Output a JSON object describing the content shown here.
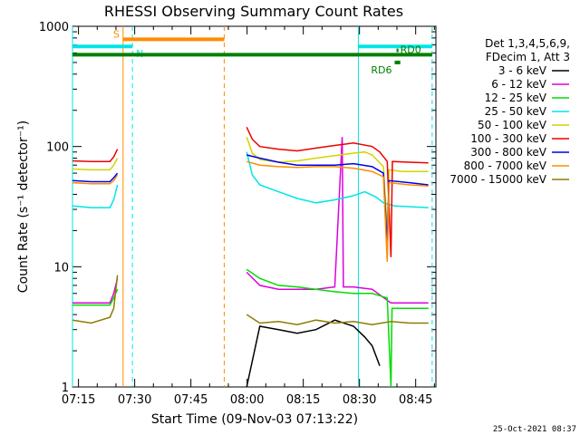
{
  "chart_data": {
    "type": "line",
    "title": "RHESSI Observing Summary Count Rates",
    "xlabel": "Start Time (09-Nov-03 07:13:22)",
    "ylabel": "Count Rate (s⁻¹ detector⁻¹)",
    "y_scale": "log",
    "ylim": [
      1,
      1000
    ],
    "xlim_minutes": [
      0,
      97
    ],
    "x_ticks": [
      {
        "label": "07:15",
        "minutes": 1.6
      },
      {
        "label": "07:30",
        "minutes": 16.6
      },
      {
        "label": "07:45",
        "minutes": 31.6
      },
      {
        "label": "08:00",
        "minutes": 46.6
      },
      {
        "label": "08:15",
        "minutes": 61.6
      },
      {
        "label": "08:30",
        "minutes": 76.6
      },
      {
        "label": "08:45",
        "minutes": 91.6
      }
    ],
    "y_ticks": [
      {
        "label": "1",
        "value": 1
      },
      {
        "label": "10",
        "value": 10
      },
      {
        "label": "100",
        "value": 100
      },
      {
        "label": "1000",
        "value": 1000
      }
    ],
    "legend_header": [
      "Det 1,3,4,5,6,9,",
      "FDecim 1, Att 3"
    ],
    "legend_position": "right",
    "series": [
      {
        "name": "3 - 6 keV",
        "color": "#000000",
        "segments": [
          [
            [
              46.5,
              1.0
            ],
            [
              50,
              3.2
            ],
            [
              55,
              3.0
            ],
            [
              60,
              2.8
            ],
            [
              65,
              3.0
            ],
            [
              70,
              3.6
            ],
            [
              75,
              3.2
            ],
            [
              78,
              2.6
            ],
            [
              80,
              2.2
            ],
            [
              82,
              1.5
            ]
          ]
        ]
      },
      {
        "name": "6 - 12 keV",
        "color": "#dd00dd",
        "segments": [
          [
            [
              0,
              5.0
            ],
            [
              10,
              5.0
            ],
            [
              11,
              6.0
            ],
            [
              12,
              8.0
            ]
          ],
          [
            [
              46.5,
              9.0
            ],
            [
              50,
              7.0
            ],
            [
              55,
              6.5
            ],
            [
              60,
              6.5
            ],
            [
              65,
              6.5
            ],
            [
              70,
              6.8
            ],
            [
              72,
              120
            ],
            [
              72.3,
              6.8
            ],
            [
              75,
              6.8
            ],
            [
              80,
              6.5
            ],
            [
              85,
              5.0
            ],
            [
              95,
              5.0
            ]
          ]
        ]
      },
      {
        "name": "12 - 25 keV",
        "color": "#00dd00",
        "segments": [
          [
            [
              0,
              4.8
            ],
            [
              10,
              4.8
            ],
            [
              11,
              5.5
            ],
            [
              12,
              6.5
            ]
          ],
          [
            [
              46.5,
              9.5
            ],
            [
              50,
              8.0
            ],
            [
              55,
              7.0
            ],
            [
              60,
              6.8
            ],
            [
              65,
              6.5
            ],
            [
              70,
              6.2
            ],
            [
              75,
              6.0
            ],
            [
              80,
              6.0
            ],
            [
              84,
              5.5
            ],
            [
              85,
              1.0
            ],
            [
              85.3,
              4.5
            ],
            [
              95,
              4.5
            ]
          ]
        ]
      },
      {
        "name": "25 - 50 keV",
        "color": "#00e5e5",
        "segments": [
          [
            [
              0,
              32
            ],
            [
              5,
              31
            ],
            [
              10,
              31
            ],
            [
              11,
              36
            ],
            [
              12,
              48
            ]
          ],
          [
            [
              46.5,
              90
            ],
            [
              48,
              58
            ],
            [
              50,
              48
            ],
            [
              55,
              42
            ],
            [
              60,
              37
            ],
            [
              65,
              34
            ],
            [
              70,
              36
            ],
            [
              75,
              39
            ],
            [
              78,
              42
            ],
            [
              81,
              38
            ],
            [
              83,
              34
            ],
            [
              86,
              32
            ],
            [
              95,
              31
            ]
          ]
        ]
      },
      {
        "name": "50 - 100 keV",
        "color": "#d4d400",
        "segments": [
          [
            [
              0,
              65
            ],
            [
              5,
              64
            ],
            [
              10,
              64
            ],
            [
              11,
              70
            ],
            [
              12,
              80
            ]
          ],
          [
            [
              46.5,
              120
            ],
            [
              48,
              88
            ],
            [
              50,
              78
            ],
            [
              55,
              74
            ],
            [
              60,
              76
            ],
            [
              65,
              80
            ],
            [
              70,
              84
            ],
            [
              75,
              88
            ],
            [
              78,
              90
            ],
            [
              80,
              85
            ],
            [
              83,
              68
            ],
            [
              84,
              20
            ],
            [
              84.5,
              64
            ],
            [
              88,
              62
            ],
            [
              95,
              62
            ]
          ]
        ]
      },
      {
        "name": "100 - 300 keV",
        "color": "#ee0000",
        "segments": [
          [
            [
              0,
              76
            ],
            [
              5,
              75
            ],
            [
              10,
              75
            ],
            [
              11,
              82
            ],
            [
              12,
              95
            ]
          ],
          [
            [
              46.5,
              145
            ],
            [
              48,
              115
            ],
            [
              50,
              100
            ],
            [
              55,
              95
            ],
            [
              60,
              92
            ],
            [
              65,
              97
            ],
            [
              70,
              102
            ],
            [
              75,
              107
            ],
            [
              80,
              100
            ],
            [
              82,
              90
            ],
            [
              84,
              75
            ],
            [
              85,
              12
            ],
            [
              85.4,
              75
            ],
            [
              90,
              74
            ],
            [
              95,
              73
            ]
          ]
        ]
      },
      {
        "name": "300 - 800 keV",
        "color": "#0000ee",
        "segments": [
          [
            [
              0,
              52
            ],
            [
              5,
              51
            ],
            [
              10,
              51
            ],
            [
              11,
              55
            ],
            [
              12,
              60
            ]
          ],
          [
            [
              46.5,
              85
            ],
            [
              50,
              80
            ],
            [
              55,
              74
            ],
            [
              60,
              70
            ],
            [
              65,
              70
            ],
            [
              70,
              70
            ],
            [
              75,
              72
            ],
            [
              80,
              68
            ],
            [
              83,
              60
            ],
            [
              84,
              15
            ],
            [
              84.5,
              52
            ],
            [
              90,
              50
            ],
            [
              95,
              48
            ]
          ]
        ]
      },
      {
        "name": "800 - 7000 keV",
        "color": "#ff8c00",
        "segments": [
          [
            [
              0,
              50
            ],
            [
              5,
              49
            ],
            [
              10,
              49
            ],
            [
              11,
              52
            ],
            [
              12,
              58
            ]
          ],
          [
            [
              46.5,
              75
            ],
            [
              50,
              70
            ],
            [
              55,
              68
            ],
            [
              60,
              67
            ],
            [
              65,
              68
            ],
            [
              70,
              68
            ],
            [
              75,
              66
            ],
            [
              80,
              62
            ],
            [
              83,
              56
            ],
            [
              84,
              11
            ],
            [
              84.5,
              50
            ],
            [
              90,
              48
            ],
            [
              95,
              47
            ]
          ]
        ]
      },
      {
        "name": "7000 - 15000 keV",
        "color": "#8b7d00",
        "segments": [
          [
            [
              0,
              3.6
            ],
            [
              5,
              3.4
            ],
            [
              10,
              3.8
            ],
            [
              11,
              4.5
            ],
            [
              12,
              8.5
            ]
          ],
          [
            [
              46.5,
              4.0
            ],
            [
              50,
              3.4
            ],
            [
              55,
              3.5
            ],
            [
              60,
              3.3
            ],
            [
              65,
              3.6
            ],
            [
              70,
              3.4
            ],
            [
              75,
              3.5
            ],
            [
              80,
              3.3
            ],
            [
              85,
              3.5
            ],
            [
              90,
              3.4
            ],
            [
              95,
              3.4
            ]
          ]
        ]
      }
    ],
    "markers": {
      "cyan_vlines_solid": [
        0,
        76.3
      ],
      "cyan_vlines_dashed": [
        16.0,
        96.0
      ],
      "orange_vlines_solid": [
        13.5
      ],
      "orange_vlines_dashed": [
        40.5
      ],
      "bars": [
        {
          "label": "S",
          "color": "#ff8c00",
          "x0": 13.5,
          "x1": 40.5,
          "value": 780
        },
        {
          "label": "N",
          "color": "#00e5e5",
          "x0": 0,
          "x1": 16.0,
          "value": 680
        },
        {
          "label": "",
          "color": "#00e5e5",
          "x0": 76.3,
          "x1": 96.0,
          "value": 680
        },
        {
          "label": "",
          "color": "#008000",
          "x0": 0,
          "x1": 96.0,
          "value": 580
        },
        {
          "label": "RD0",
          "color": "#008000",
          "x0": 86.5,
          "x1": 87.0,
          "value": 630
        },
        {
          "label": "RD6",
          "color": "#008000",
          "x0": 86.0,
          "x1": 87.5,
          "value": 500
        }
      ]
    }
  },
  "footer": {
    "date": "25-Oct-2021 08:37"
  }
}
